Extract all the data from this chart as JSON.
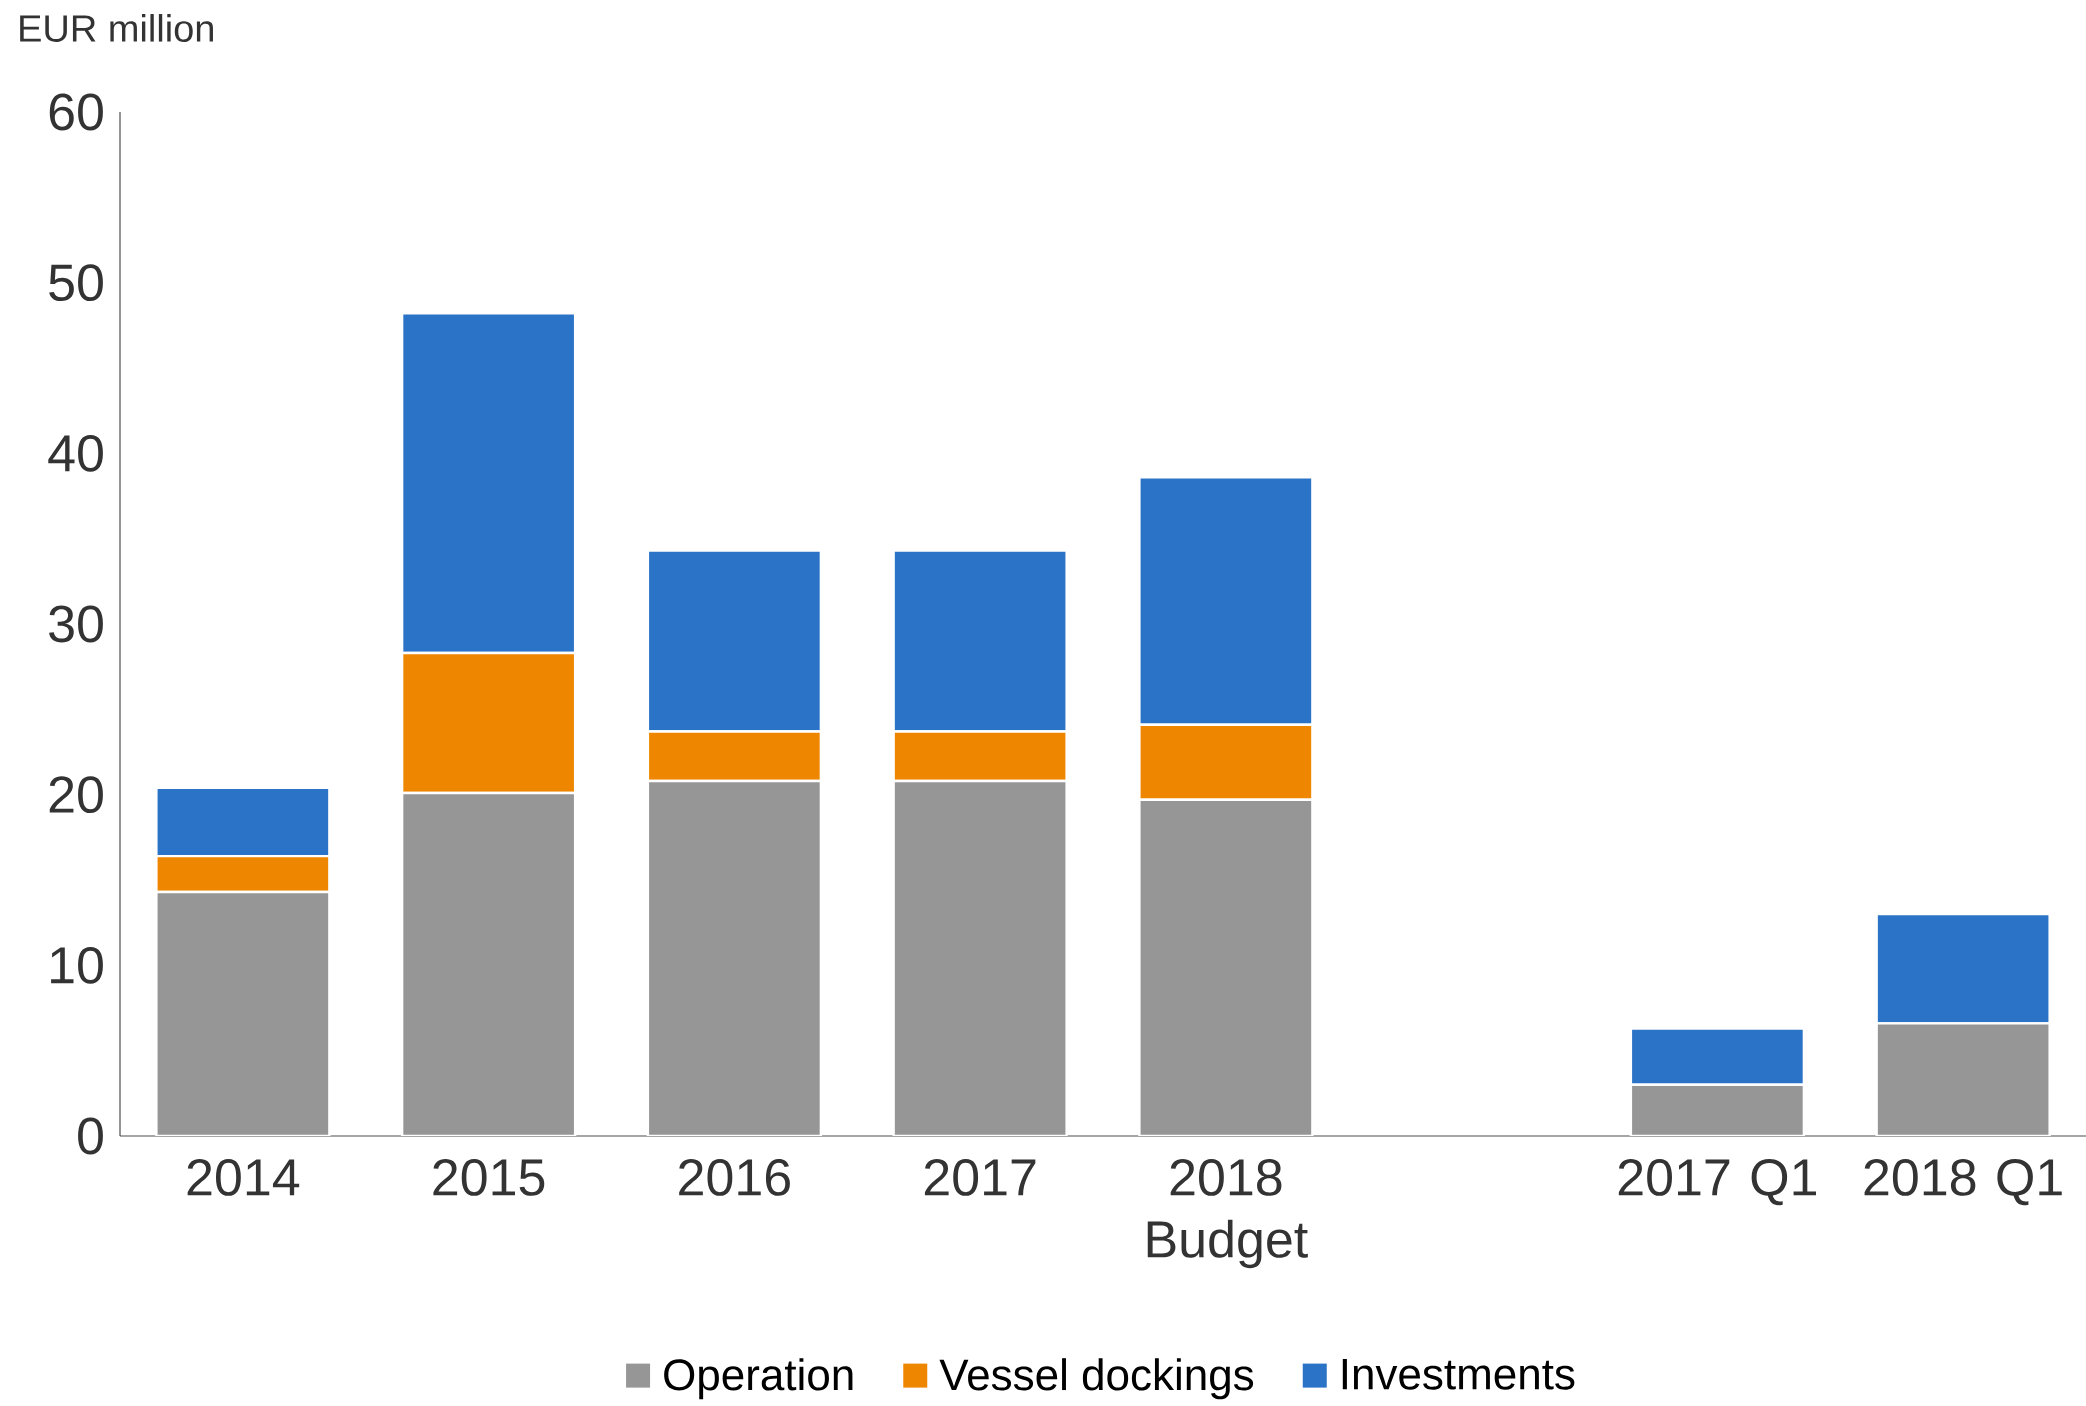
{
  "chart_data": {
    "type": "bar",
    "stacked": true,
    "ylabel": "EUR million",
    "categories": [
      "2014",
      "2015",
      "2016",
      "2017",
      "2018 Budget",
      null,
      "2017 Q1",
      "2018 Q1"
    ],
    "series": [
      {
        "name": "Operation",
        "color": "#969696",
        "values": [
          14.3,
          20.1,
          20.8,
          20.8,
          19.7,
          null,
          3.0,
          6.6
        ]
      },
      {
        "name": "Vessel dockings",
        "color": "#ee8600",
        "values": [
          2.1,
          8.2,
          2.9,
          2.9,
          4.4,
          null,
          0,
          0
        ]
      },
      {
        "name": "Investments",
        "color": "#2a73c6",
        "values": [
          4.0,
          19.9,
          10.6,
          10.6,
          14.5,
          null,
          3.3,
          6.4
        ]
      }
    ],
    "ylim": [
      0,
      60
    ],
    "yticks": [
      0,
      10,
      20,
      30,
      40,
      50,
      60
    ],
    "grid": false,
    "legend": "bottom"
  }
}
